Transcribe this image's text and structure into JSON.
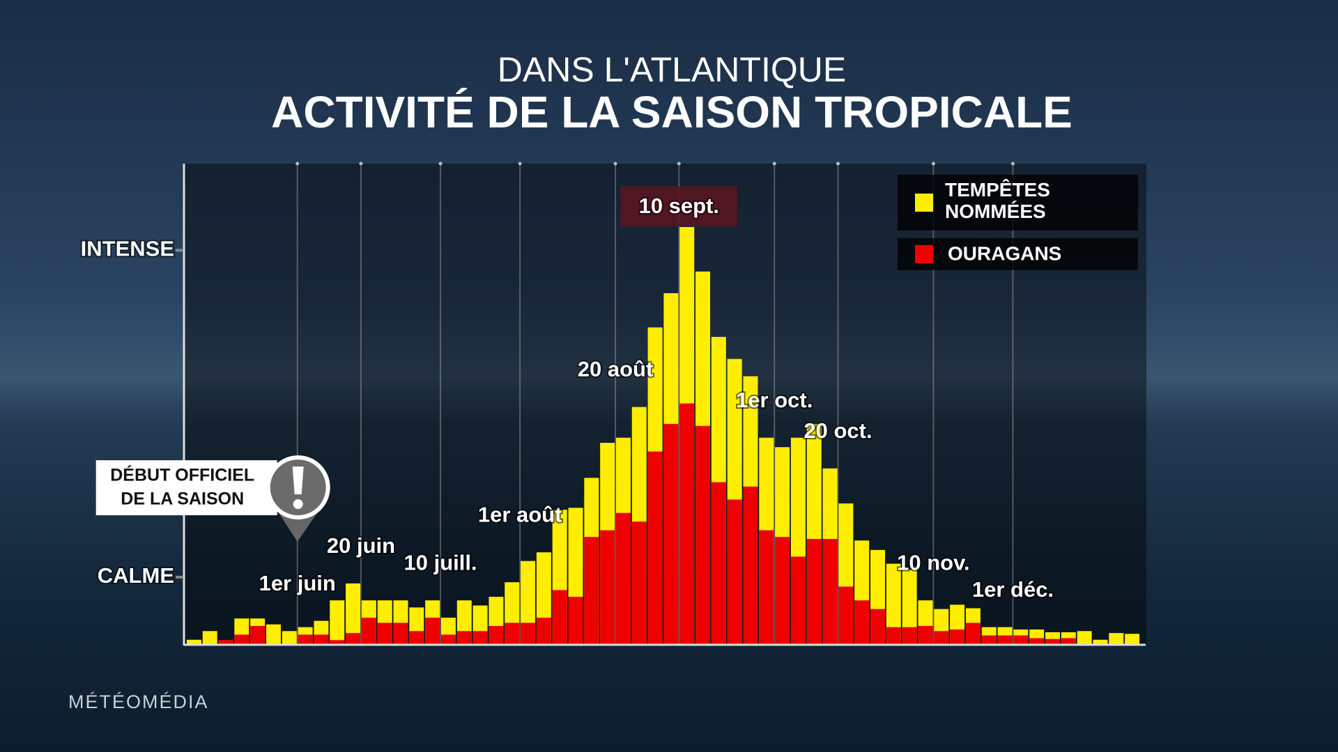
{
  "chart_data": {
    "type": "bar",
    "subtitle": "DANS L'ATLANTIQUE",
    "title": "ACTIVITÉ DE LA SAISON TROPICALE",
    "categories": [
      null,
      null,
      null,
      null,
      null,
      null,
      null,
      "1er juin",
      null,
      null,
      null,
      "20 juin",
      null,
      null,
      null,
      null,
      "10 juill.",
      null,
      null,
      null,
      null,
      "1er août",
      null,
      null,
      null,
      null,
      null,
      "20 août",
      null,
      null,
      null,
      "10 sept.",
      null,
      null,
      null,
      null,
      null,
      "1er oct.",
      null,
      null,
      null,
      "20 oct.",
      null,
      null,
      null,
      null,
      null,
      "10 nov.",
      null,
      null,
      null,
      null,
      "1er déc.",
      null,
      null,
      null,
      null,
      null,
      null,
      null
    ],
    "series": [
      {
        "name": "TEMPÊTES NOMMÉES",
        "color": "#ffee00",
        "values": [
          1.1,
          3.3,
          1,
          6.5,
          6.5,
          5,
          3.3,
          4.3,
          5.9,
          11.1,
          15.4,
          11.1,
          11.1,
          11.1,
          9.3,
          11.1,
          6.7,
          11.1,
          9.8,
          12,
          15.7,
          21.1,
          23.3,
          34.1,
          34.6,
          42.2,
          51.1,
          52.4,
          60.2,
          80.4,
          89.1,
          105.9,
          94.6,
          78,
          72.4,
          68,
          52.4,
          50,
          52.4,
          55.9,
          44.6,
          35.7,
          26.3,
          23.9,
          20.4,
          18.9,
          11.1,
          8.9,
          10,
          9.1,
          4.3,
          4.3,
          3.7,
          3.7,
          3,
          3,
          3.3,
          1.1,
          2.8,
          2.6
        ]
      },
      {
        "name": "OURAGANS",
        "color": "#ee0000",
        "values": [
          0,
          0,
          1,
          2.4,
          4.6,
          0,
          0,
          2.4,
          2.4,
          1,
          2.8,
          6.7,
          5.4,
          5.4,
          3.3,
          6.7,
          2.4,
          3.3,
          3.3,
          4.6,
          5.4,
          5.4,
          6.7,
          13.7,
          12,
          27.2,
          28.9,
          33.3,
          31.1,
          48.9,
          55.9,
          61.1,
          55.4,
          41.1,
          36.7,
          40,
          28.9,
          27.2,
          22.2,
          26.7,
          26.7,
          14.6,
          11.1,
          8.9,
          4.3,
          4.3,
          4.6,
          3.3,
          3.7,
          5.4,
          2.2,
          2.2,
          2.2,
          1.5,
          1.3,
          1.5,
          0,
          0,
          0,
          0
        ]
      }
    ],
    "ylim": [
      0,
      122
    ],
    "yticks": [
      {
        "value": 17,
        "label": "CALME"
      },
      {
        "value": 100,
        "label": "INTENSE"
      }
    ],
    "overlap": true,
    "legend": "top-right",
    "callout": [
      "DÉBUT OFFICIEL",
      "DE LA SAISON"
    ],
    "brand": "MÉTÉOMÉDIA"
  }
}
